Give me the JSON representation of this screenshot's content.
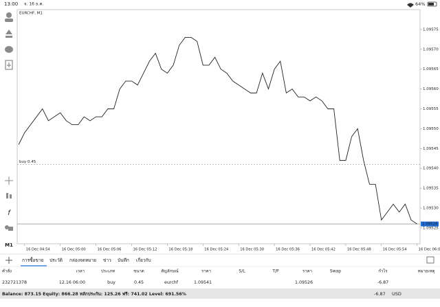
{
  "status_bar": {
    "time": "13:00",
    "date": "จ. 16 ธ.ค.",
    "battery": "64%"
  },
  "left_toolbar": {
    "timeframe": "M1"
  },
  "chart_data": {
    "type": "line",
    "title": "EURCHF, M1",
    "color": "#222222",
    "values": [
      1.09546,
      1.09549,
      1.09551,
      1.09553,
      1.09555,
      1.09552,
      1.09553,
      1.09554,
      1.09552,
      1.09551,
      1.09551,
      1.09553,
      1.09552,
      1.09553,
      1.09553,
      1.09555,
      1.09555,
      1.0956,
      1.09562,
      1.09562,
      1.09561,
      1.09564,
      1.09567,
      1.09569,
      1.09565,
      1.09564,
      1.09566,
      1.09571,
      1.09573,
      1.09573,
      1.09572,
      1.09566,
      1.09566,
      1.09568,
      1.09565,
      1.09564,
      1.09562,
      1.09561,
      1.0956,
      1.09559,
      1.09559,
      1.09564,
      1.0956,
      1.09565,
      1.09567,
      1.09559,
      1.0956,
      1.09558,
      1.09558,
      1.09557,
      1.09558,
      1.09557,
      1.09555,
      1.09555,
      1.09542,
      1.09542,
      1.09548,
      1.0955,
      1.09542,
      1.09536,
      1.09536,
      1.09527,
      1.09529,
      1.09531,
      1.09529,
      1.09531,
      1.09527,
      1.09526
    ],
    "xlim": [
      -0.25,
      67.5
    ],
    "xticks": [
      {
        "value": 1,
        "label": "16 Dec 04:54"
      },
      {
        "value": 7,
        "label": "16 Dec 05:00"
      },
      {
        "value": 13,
        "label": "16 Dec 05:06"
      },
      {
        "value": 19,
        "label": "16 Dec 05:12"
      },
      {
        "value": 25,
        "label": "16 Dec 05:18"
      },
      {
        "value": 31,
        "label": "16 Dec 05:24"
      },
      {
        "value": 37,
        "label": "16 Dec 05:30"
      },
      {
        "value": 43,
        "label": "16 Dec 05:36"
      },
      {
        "value": 49,
        "label": "16 Dec 05:42"
      },
      {
        "value": 55,
        "label": "16 Dec 05:48"
      },
      {
        "value": 61,
        "label": "16 Dec 05:54"
      },
      {
        "value": 67,
        "label": "16 Dec 06:00"
      }
    ],
    "ylim": [
      1.09521,
      1.0958
    ],
    "yticks": [
      1.09525,
      {
        "value": 1.0953,
        "label": "1.09530"
      },
      1.09535,
      {
        "value": 1.0954,
        "label": "1.09540"
      },
      1.09545,
      {
        "value": 1.0955,
        "label": "1.09550"
      },
      1.09555,
      {
        "value": 1.0956,
        "label": "1.09560"
      },
      1.09565,
      {
        "value": 1.0957,
        "label": "1.09570"
      },
      1.09575
    ],
    "order_line": {
      "value": 1.09541,
      "label": "buy 0.45"
    },
    "bid": 1.09526
  },
  "tabs": [
    "การซื้อขาย",
    "ประวัติ",
    "กล่องจดหมาย",
    "ข่าว",
    "บันทึก",
    "เกี่ยวกับ"
  ],
  "table": {
    "columns": [
      "คำสั่ง",
      "เวลา",
      "ประเภท",
      "ขนาด",
      "สัญลักษณ์",
      "ราคา",
      "S/L",
      "T/P",
      "ราคา",
      "Swap",
      "กำไร",
      "หมายเหตุ"
    ],
    "row": {
      "order": "232721378",
      "time": "12.16 06:00",
      "type": "buy",
      "size": "0.45",
      "symbol": "eurchf",
      "open_price": "1.09541",
      "current_price": "1.09526",
      "profit": "-6.87"
    }
  },
  "summary": {
    "text": "Balance: 873.15 Equity: 866.28 หลักประกัน: 125.26 ฟรี: 741.02 Level: 691.56%",
    "profit": "-6.87",
    "currency": "USD"
  }
}
